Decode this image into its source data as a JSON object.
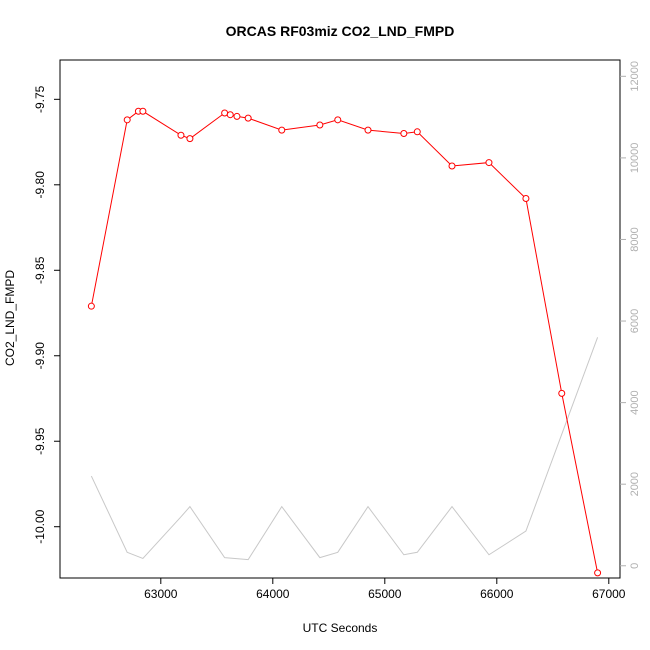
{
  "chart_data": {
    "type": "line",
    "title": "ORCAS RF03miz CO2_LND_FMPD",
    "xlabel": "UTC Seconds",
    "ylabel": "CO2_LND_FMPD",
    "xlim": [
      62100,
      67100
    ],
    "ylim": [
      -10.03,
      -9.727
    ],
    "y2lim": [
      -300,
      12400
    ],
    "x_ticks": [
      63000,
      64000,
      65000,
      66000,
      67000
    ],
    "y_ticks": [
      -10.0,
      -9.95,
      -9.9,
      -9.85,
      -9.8,
      -9.75
    ],
    "y_tick_labels": [
      "-10.00",
      "-9.95",
      "-9.90",
      "-9.85",
      "-9.80",
      "-9.75"
    ],
    "y2_ticks": [
      0,
      2000,
      4000,
      6000,
      8000,
      10000,
      12000
    ],
    "series": [
      {
        "color": "#ff0000",
        "axis": "left",
        "markers": "open-circle",
        "x": [
          62380,
          62700,
          62800,
          62840,
          63180,
          63260,
          63570,
          63620,
          63680,
          63780,
          64080,
          64420,
          64580,
          64850,
          65170,
          65290,
          65600,
          65930,
          66260,
          66580,
          66900
        ],
        "y": [
          -9.871,
          -9.762,
          -9.757,
          -9.757,
          -9.771,
          -9.773,
          -9.758,
          -9.759,
          -9.76,
          -9.761,
          -9.768,
          -9.765,
          -9.762,
          -9.768,
          -9.77,
          -9.769,
          -9.789,
          -9.787,
          -9.808,
          -9.922,
          -10.027
        ]
      },
      {
        "color": "#c8c8c8",
        "axis": "right",
        "markers": "none",
        "x": [
          62380,
          62700,
          62840,
          63180,
          63260,
          63570,
          63780,
          64080,
          64420,
          64580,
          64850,
          65170,
          65290,
          65600,
          65930,
          66260,
          66900
        ],
        "y": [
          2200,
          330,
          180,
          1200,
          1450,
          200,
          150,
          1450,
          200,
          330,
          1450,
          270,
          330,
          1450,
          270,
          850,
          5600
        ]
      }
    ]
  }
}
